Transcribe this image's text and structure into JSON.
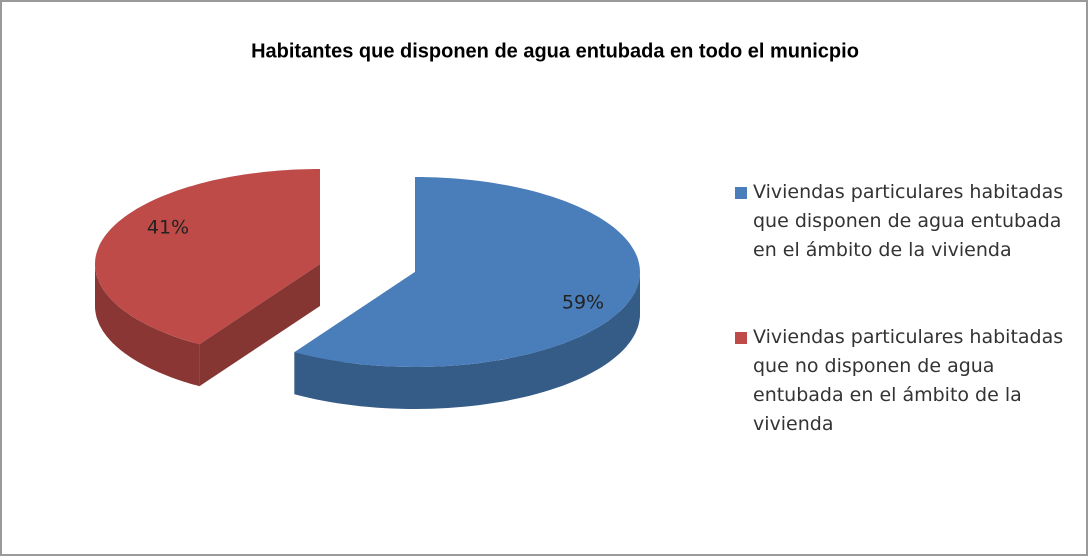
{
  "chart_data": {
    "type": "pie3d",
    "title": "Habitantes que disponen de agua entubada  en todo el municpio",
    "categories": [
      "Viviendas particulares habitadas que disponen de agua entubada en el ámbito de la vivienda",
      "Viviendas particulares habitadas que no disponen de agua entubada en el ámbito de la vivienda"
    ],
    "values": [
      59,
      41
    ],
    "value_labels": [
      "59%",
      "41%"
    ],
    "colors": [
      "#4a7ebb",
      "#be4b48"
    ],
    "legend": "right"
  }
}
